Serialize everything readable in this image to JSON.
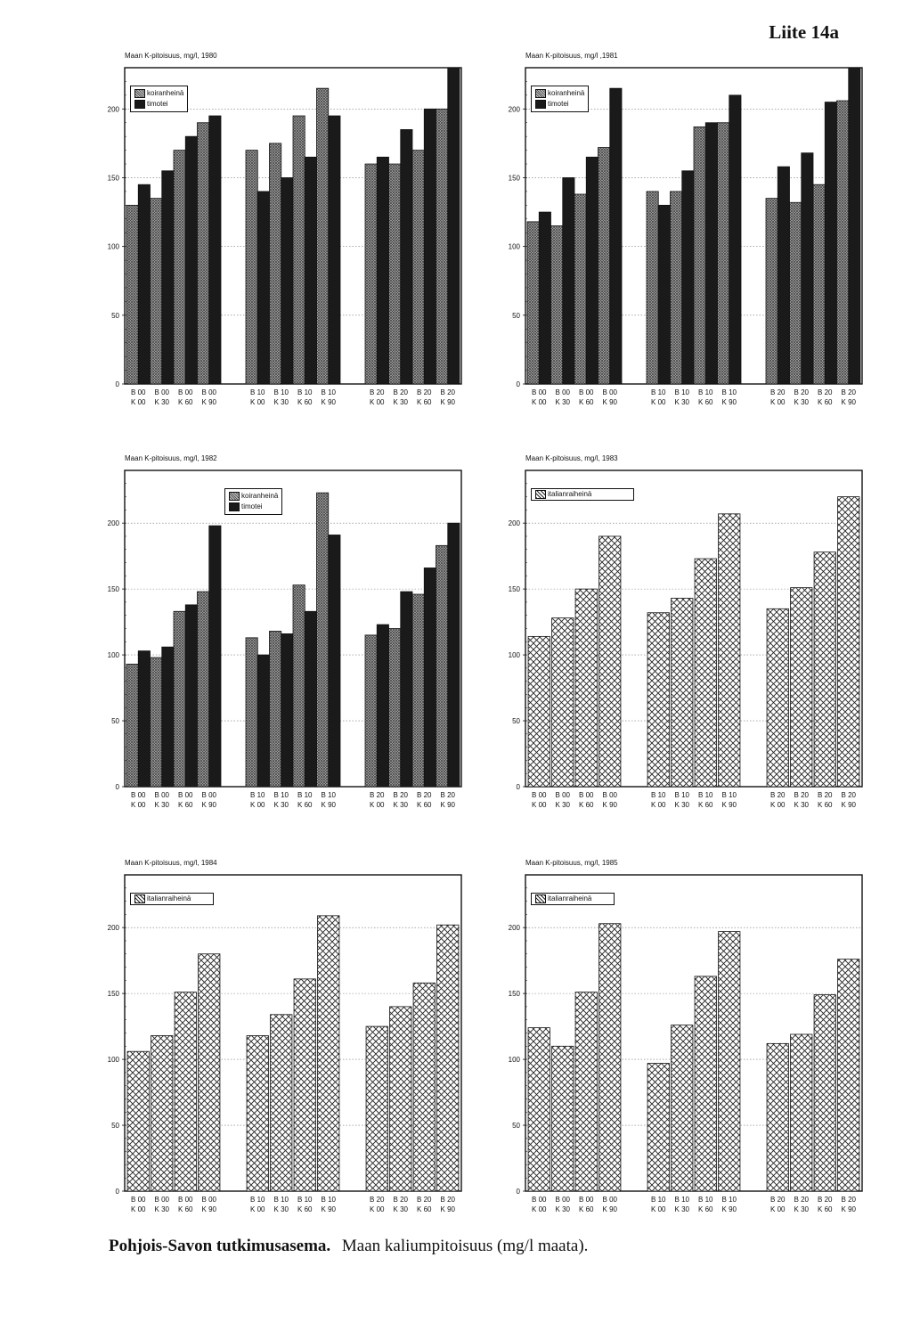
{
  "page_label": "Liite 14a",
  "caption": {
    "station": "Pohjois-Savon tutkimusasema.",
    "description": "Maan kaliumpitoisuus (mg/l maata)."
  },
  "legend_labels": {
    "koiranheina": "koiranheinä",
    "timotei": "timotei",
    "italianraiheina": "italianraiheinä"
  },
  "colors": {
    "koiranheina": "#9a9a9a",
    "timotei": "#1a1a1a",
    "italianraiheina": "#ffffff"
  },
  "chart_data": [
    {
      "type": "bar",
      "title": "Maan K-pitoisuus, mg/l, 1980",
      "ylim": [
        0,
        230
      ],
      "yticks": [
        0,
        50,
        100,
        150,
        200
      ],
      "grid": true,
      "legend": "top-left",
      "categories": [
        [
          "B 00",
          "K 00"
        ],
        [
          "B 00",
          "K 30"
        ],
        [
          "B 00",
          "K 60"
        ],
        [
          "B 00",
          "K 90"
        ],
        [
          "B 10",
          "K 00"
        ],
        [
          "B 10",
          "K 30"
        ],
        [
          "B 10",
          "K 60"
        ],
        [
          "B 10",
          "K 90"
        ],
        [
          "B 20",
          "K 00"
        ],
        [
          "B 20",
          "K 30"
        ],
        [
          "B 20",
          "K 60"
        ],
        [
          "B 20",
          "K 90"
        ]
      ],
      "series": [
        {
          "name": "koiranheinä",
          "values": [
            130,
            135,
            170,
            190,
            170,
            175,
            195,
            215,
            160,
            160,
            170,
            200
          ]
        },
        {
          "name": "timotei",
          "values": [
            145,
            155,
            180,
            195,
            140,
            150,
            165,
            195,
            165,
            185,
            200,
            230
          ]
        }
      ]
    },
    {
      "type": "bar",
      "title": "Maan K-pitoisuus, mg/l ,1981",
      "ylim": [
        0,
        230
      ],
      "yticks": [
        0,
        50,
        100,
        150,
        200
      ],
      "grid": true,
      "legend": "top-left",
      "categories": [
        [
          "B 00",
          "K 00"
        ],
        [
          "B 00",
          "K 30"
        ],
        [
          "B 00",
          "K 60"
        ],
        [
          "B 00",
          "K 90"
        ],
        [
          "B 10",
          "K 00"
        ],
        [
          "B 10",
          "K 30"
        ],
        [
          "B 10",
          "K 60"
        ],
        [
          "B 10",
          "K 90"
        ],
        [
          "B 20",
          "K 00"
        ],
        [
          "B 20",
          "K 30"
        ],
        [
          "B 20",
          "K 60"
        ],
        [
          "B 20",
          "K 90"
        ]
      ],
      "series": [
        {
          "name": "koiranheinä",
          "values": [
            118,
            115,
            138,
            172,
            140,
            140,
            187,
            190,
            135,
            132,
            145,
            206
          ]
        },
        {
          "name": "timotei",
          "values": [
            125,
            150,
            165,
            215,
            130,
            155,
            190,
            210,
            158,
            168,
            205,
            230
          ]
        }
      ]
    },
    {
      "type": "bar",
      "title": "Maan K-pitoisuus, mg/l, 1982",
      "ylim": [
        0,
        240
      ],
      "yticks": [
        0,
        50,
        100,
        150,
        200
      ],
      "grid": true,
      "legend": "top-right",
      "categories": [
        [
          "B 00",
          "K 00"
        ],
        [
          "B 00",
          "K 30"
        ],
        [
          "B 00",
          "K 60"
        ],
        [
          "B 00",
          "K 90"
        ],
        [
          "B 10",
          "K 00"
        ],
        [
          "B 10",
          "K 30"
        ],
        [
          "B 10",
          "K 60"
        ],
        [
          "B 10",
          "K 90"
        ],
        [
          "B 20",
          "K 00"
        ],
        [
          "B 20",
          "K 30"
        ],
        [
          "B 20",
          "K 60"
        ],
        [
          "B 20",
          "K 90"
        ]
      ],
      "series": [
        {
          "name": "koiranheinä",
          "values": [
            93,
            98,
            133,
            148,
            113,
            118,
            153,
            223,
            115,
            120,
            146,
            183
          ]
        },
        {
          "name": "timotei",
          "values": [
            103,
            106,
            138,
            198,
            100,
            116,
            133,
            191,
            123,
            148,
            166,
            200
          ]
        }
      ]
    },
    {
      "type": "bar",
      "title": "Maan K-pitoisuus, mg/l, 1983",
      "ylim": [
        0,
        240
      ],
      "yticks": [
        0,
        50,
        100,
        150,
        200
      ],
      "grid": true,
      "legend": "top-left",
      "categories": [
        [
          "B 00",
          "K 00"
        ],
        [
          "B 00",
          "K 30"
        ],
        [
          "B 00",
          "K 60"
        ],
        [
          "B 00",
          "K 90"
        ],
        [
          "B 10",
          "K 00"
        ],
        [
          "B 10",
          "K 30"
        ],
        [
          "B 10",
          "K 60"
        ],
        [
          "B 10",
          "K 90"
        ],
        [
          "B 20",
          "K 00"
        ],
        [
          "B 20",
          "K 30"
        ],
        [
          "B 20",
          "K 60"
        ],
        [
          "B 20",
          "K 90"
        ]
      ],
      "series": [
        {
          "name": "italianraiheinä",
          "values": [
            114,
            128,
            150,
            190,
            132,
            143,
            173,
            207,
            135,
            151,
            178,
            220
          ]
        }
      ]
    },
    {
      "type": "bar",
      "title": "Maan K-pitoisuus, mg/l, 1984",
      "ylim": [
        0,
        240
      ],
      "yticks": [
        0,
        50,
        100,
        150,
        200
      ],
      "grid": true,
      "legend": "top-left",
      "categories": [
        [
          "B 00",
          "K 00"
        ],
        [
          "B 00",
          "K 30"
        ],
        [
          "B 00",
          "K 60"
        ],
        [
          "B 00",
          "K 90"
        ],
        [
          "B 10",
          "K 00"
        ],
        [
          "B 10",
          "K 30"
        ],
        [
          "B 10",
          "K 60"
        ],
        [
          "B 10",
          "K 90"
        ],
        [
          "B 20",
          "K 00"
        ],
        [
          "B 20",
          "K 30"
        ],
        [
          "B 20",
          "K 60"
        ],
        [
          "B 20",
          "K 90"
        ]
      ],
      "series": [
        {
          "name": "italianraiheinä",
          "values": [
            106,
            118,
            151,
            180,
            118,
            134,
            161,
            209,
            125,
            140,
            158,
            202
          ]
        }
      ]
    },
    {
      "type": "bar",
      "title": "Maan K-pitoisuus, mg/l, 1985",
      "ylim": [
        0,
        240
      ],
      "yticks": [
        0,
        50,
        100,
        150,
        200
      ],
      "grid": true,
      "legend": "top-left",
      "categories": [
        [
          "B 00",
          "K 00"
        ],
        [
          "B 00",
          "K 30"
        ],
        [
          "B 00",
          "K 60"
        ],
        [
          "B 00",
          "K 90"
        ],
        [
          "B 10",
          "K 00"
        ],
        [
          "B 10",
          "K 30"
        ],
        [
          "B 10",
          "K 60"
        ],
        [
          "B 10",
          "K 90"
        ],
        [
          "B 20",
          "K 00"
        ],
        [
          "B 20",
          "K 30"
        ],
        [
          "B 20",
          "K 60"
        ],
        [
          "B 20",
          "K 90"
        ]
      ],
      "series": [
        {
          "name": "italianraiheinä",
          "values": [
            124,
            110,
            151,
            203,
            97,
            126,
            163,
            197,
            112,
            119,
            149,
            176
          ]
        }
      ]
    }
  ]
}
